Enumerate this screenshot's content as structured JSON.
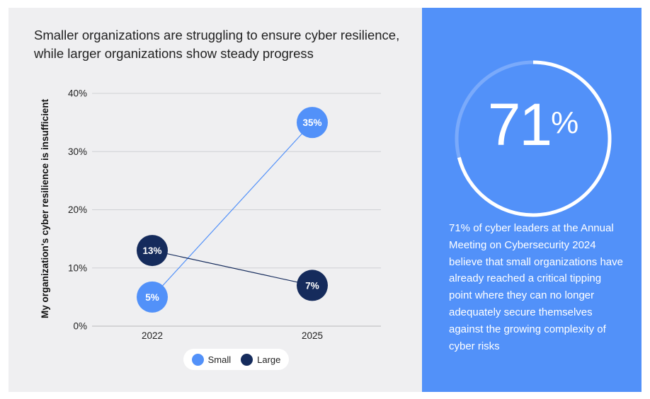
{
  "chart_data": {
    "type": "line",
    "title": "Smaller organizations are struggling to ensure cyber resilience, while larger organizations show steady progress",
    "ylabel": "My organization's cyber resilience is insufficient",
    "xlabel": "",
    "categories": [
      "2022",
      "2025"
    ],
    "ylim": [
      0,
      40
    ],
    "yticks": [
      "0%",
      "10%",
      "20%",
      "30%",
      "40%"
    ],
    "ytick_values": [
      0,
      10,
      20,
      30,
      40
    ],
    "grid": true,
    "series": [
      {
        "name": "Small",
        "values": [
          5,
          35
        ],
        "labels": [
          "5%",
          "35%"
        ],
        "color": "#5291f9"
      },
      {
        "name": "Large",
        "values": [
          13,
          7
        ],
        "labels": [
          "13%",
          "7%"
        ],
        "color": "#152b5c"
      }
    ],
    "legend": [
      "Small",
      "Large"
    ]
  },
  "stat": {
    "value": "71",
    "unit": "%",
    "fraction": 0.71,
    "description": "71% of cyber leaders at the Annual Meeting on Cybersecurity 2024 believe that small organizations have already reached a critical tipping point where they can no longer adequately secure themselves against the growing complexity of cyber risks"
  },
  "colors": {
    "small": "#5291f9",
    "large": "#152b5c",
    "panel": "#5291f9",
    "background": "#efeff1"
  }
}
